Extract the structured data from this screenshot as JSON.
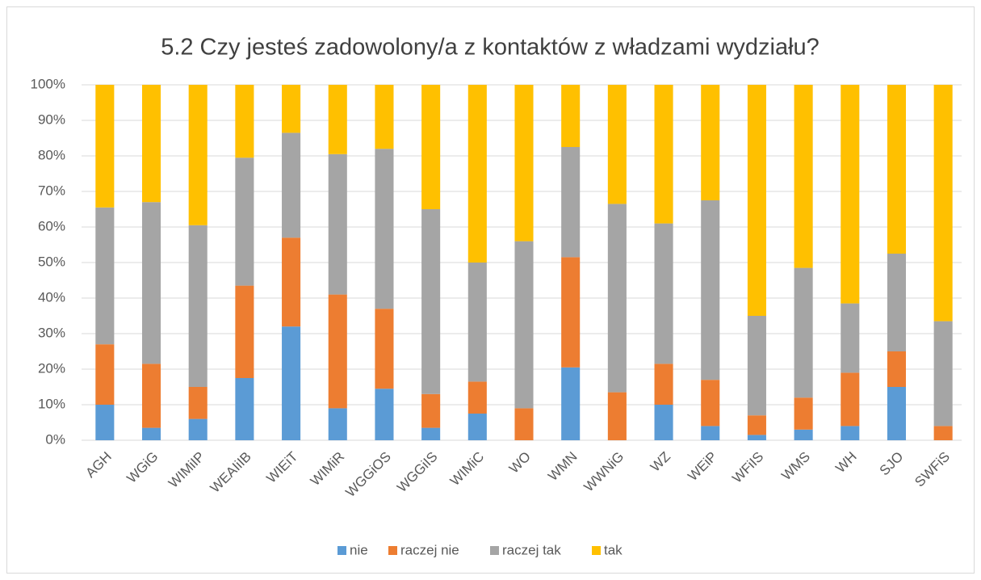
{
  "chart_data": {
    "type": "stacked_bar",
    "title": "5.2 Czy jesteś zadowolony/a z kontaktów z władzami wydziału?",
    "categories": [
      "AGH",
      "WGiG",
      "WIMiIP",
      "WEAIiIB",
      "WIEiT",
      "WIMiR",
      "WGGiOS",
      "WGGiIS",
      "WIMiC",
      "WO",
      "WMN",
      "WWNiG",
      "WZ",
      "WEiP",
      "WFiIS",
      "WMS",
      "WH",
      "SJO",
      "SWFiS"
    ],
    "series": [
      {
        "name": "nie",
        "color": "#5b9bd5",
        "values": [
          10,
          3.5,
          6,
          17.5,
          32,
          9,
          14.5,
          3.5,
          7.5,
          0,
          20.5,
          0,
          10,
          4,
          1.5,
          3,
          4,
          15,
          0
        ]
      },
      {
        "name": "raczej nie",
        "color": "#ed7d31",
        "values": [
          17,
          18,
          9,
          26,
          25,
          32,
          22.5,
          9.5,
          9,
          9,
          31,
          13.5,
          11.5,
          13,
          5.5,
          9,
          15,
          10,
          4
        ]
      },
      {
        "name": "raczej tak",
        "color": "#a5a5a5",
        "values": [
          38.5,
          45.5,
          45.5,
          36,
          29.5,
          39.5,
          45,
          52,
          33.5,
          47,
          31,
          53,
          39.5,
          50.5,
          28,
          36.5,
          19.5,
          27.5,
          29.5
        ]
      },
      {
        "name": "tak",
        "color": "#ffc000",
        "values": [
          34.5,
          33,
          39.5,
          20.5,
          13.5,
          19.5,
          18,
          35,
          50,
          44,
          17.5,
          33.5,
          39,
          32.5,
          65,
          51.5,
          61.5,
          47.5,
          66.5
        ]
      }
    ],
    "ylim": [
      0,
      100
    ],
    "yticks": [
      {
        "value": 0,
        "label": "0%"
      },
      {
        "value": 10,
        "label": "10%"
      },
      {
        "value": 20,
        "label": "20%"
      },
      {
        "value": 30,
        "label": "30%"
      },
      {
        "value": 40,
        "label": "40%"
      },
      {
        "value": 50,
        "label": "50%"
      },
      {
        "value": 60,
        "label": "60%"
      },
      {
        "value": 70,
        "label": "70%"
      },
      {
        "value": 80,
        "label": "80%"
      },
      {
        "value": 90,
        "label": "90%"
      },
      {
        "value": 100,
        "label": "100%"
      }
    ],
    "grid": true,
    "legend": "bottom"
  }
}
